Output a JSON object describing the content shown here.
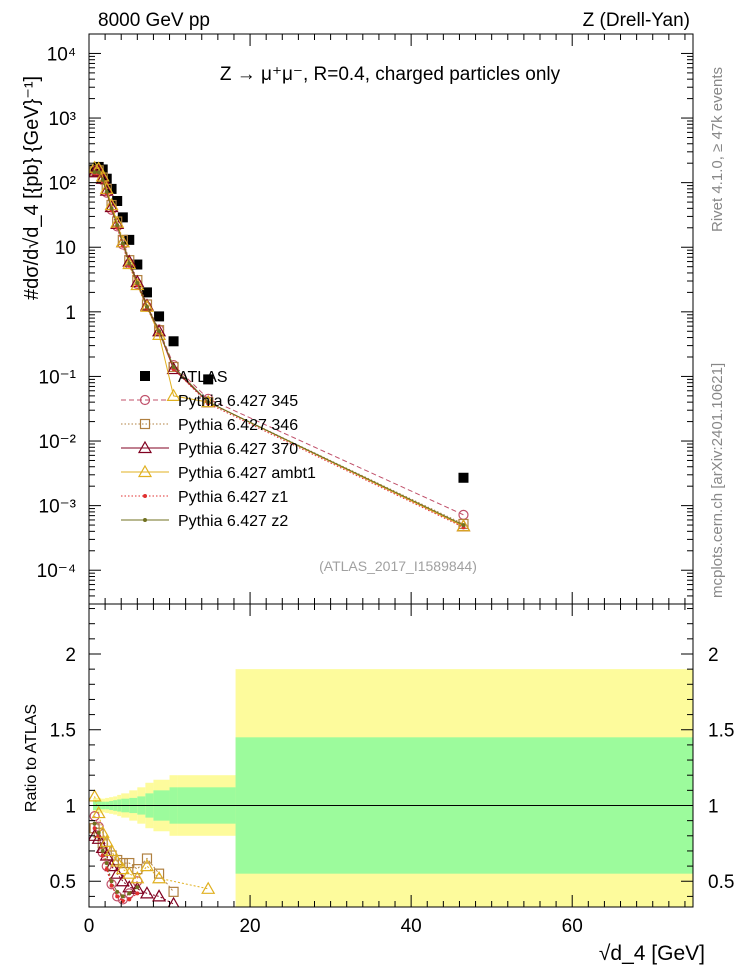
{
  "header": {
    "energy_label": "8000 GeV pp",
    "process_label": "Z (Drell-Yan)",
    "plot_title": "Z → μ⁺μ⁻, R=0.4, charged particles only",
    "analysis_id": "(ATLAS_2017_I1589844)",
    "side_label_top": "Rivet 4.1.0, ≥ 47k events",
    "side_label_bottom": "mcplots.cern.ch [arXiv:2401.10621]"
  },
  "chart_data": [
    {
      "panel": "main",
      "type": "scatter",
      "yscale": "log",
      "ylabel": "#dσ/d√d_4 [{pb} {GeV}⁻¹]",
      "xlim": [
        0,
        75
      ],
      "ylim": [
        3e-05,
        20000
      ],
      "yticks": [
        "10⁻⁴",
        "10⁻³",
        "10⁻²",
        "10⁻¹",
        "1",
        "10",
        "10²",
        "10³",
        "10⁴"
      ],
      "ytick_values": [
        0.0001,
        0.001,
        0.01,
        0.1,
        1,
        10,
        100,
        1000,
        10000
      ],
      "legend_position": "middle-left",
      "series": [
        {
          "name": "ATLAS",
          "color": "#000000",
          "marker": "square",
          "x": [
            0.7,
            1.2,
            1.7,
            2.2,
            2.8,
            3.5,
            4.2,
            5.0,
            6.0,
            7.2,
            8.7,
            10.5,
            14.8,
            46.5
          ],
          "y": [
            160,
            175,
            160,
            115,
            80,
            52,
            29,
            13,
            5.4,
            2.0,
            0.85,
            0.35,
            0.09,
            0.0027
          ]
        },
        {
          "name": "Pythia 6.427 345",
          "color": "#c0506a",
          "marker": "circle-open",
          "line": "dashed",
          "x": [
            0.7,
            1.2,
            1.7,
            2.2,
            2.8,
            3.5,
            4.2,
            5.0,
            6.0,
            7.2,
            8.7,
            10.5,
            14.8,
            46.5
          ],
          "y": [
            155,
            150,
            110,
            70,
            38,
            21,
            11,
            5.5,
            2.7,
            1.2,
            0.53,
            0.15,
            0.045,
            0.00072
          ]
        },
        {
          "name": "Pythia 6.427 346",
          "color": "#b08040",
          "marker": "square-open",
          "line": "dotted",
          "x": [
            0.7,
            1.2,
            1.7,
            2.2,
            2.8,
            3.5,
            4.2,
            5.0,
            6.0,
            7.2,
            8.7,
            10.5,
            14.8,
            46.5
          ],
          "y": [
            150,
            155,
            120,
            80,
            45,
            25,
            13,
            6.3,
            3.1,
            1.3,
            0.52,
            0.14,
            0.04,
            0.00052
          ]
        },
        {
          "name": "Pythia 6.427 370",
          "color": "#800020",
          "marker": "triangle-open",
          "line": "solid",
          "x": [
            0.7,
            1.2,
            1.7,
            2.2,
            2.8,
            3.5,
            4.2,
            5.0,
            6.0,
            7.2,
            8.7,
            10.5,
            14.8,
            46.5
          ],
          "y": [
            145,
            150,
            115,
            75,
            42,
            23,
            12,
            6.0,
            2.9,
            1.25,
            0.5,
            0.13,
            0.04,
            0.00048
          ]
        },
        {
          "name": "Pythia 6.427 ambt1",
          "color": "#e0b020",
          "marker": "triangle-open",
          "line": "solid",
          "x": [
            0.7,
            1.2,
            1.7,
            2.2,
            2.8,
            3.5,
            4.2,
            5.0,
            6.0,
            7.2,
            8.7,
            10.5,
            14.8,
            46.5
          ],
          "y": [
            170,
            165,
            125,
            80,
            45,
            24,
            12,
            5.5,
            2.6,
            1.2,
            0.44,
            0.05,
            0.04,
            0.00048
          ]
        },
        {
          "name": "Pythia 6.427 z1",
          "color": "#e03030",
          "marker": "dot",
          "line": "dotted",
          "x": [
            0.7,
            1.2,
            1.7,
            2.2,
            2.8,
            3.5,
            4.2,
            5.0,
            6.0,
            7.2,
            8.7,
            10.5,
            14.8,
            46.5
          ],
          "y": [
            140,
            140,
            105,
            68,
            37,
            20,
            10.5,
            5.2,
            2.6,
            1.15,
            0.48,
            0.13,
            0.038,
            0.00046
          ]
        },
        {
          "name": "Pythia 6.427 z2",
          "color": "#707020",
          "marker": "dot",
          "line": "solid",
          "x": [
            0.7,
            1.2,
            1.7,
            2.2,
            2.8,
            3.5,
            4.2,
            5.0,
            6.0,
            7.2,
            8.7,
            10.5,
            14.8,
            46.5
          ],
          "y": [
            145,
            145,
            110,
            72,
            40,
            22,
            11.5,
            5.6,
            2.8,
            1.2,
            0.5,
            0.14,
            0.04,
            0.0005
          ]
        }
      ]
    },
    {
      "panel": "ratio",
      "type": "line",
      "xlabel": "√d_4 [GeV]",
      "ylabel": "Ratio to ATLAS",
      "xlim": [
        0,
        75
      ],
      "ylim": [
        0.33,
        2.33
      ],
      "xticks": [
        "0",
        "20",
        "40",
        "60"
      ],
      "xtick_values": [
        0,
        20,
        40,
        60
      ],
      "yticks": [
        "0.5",
        "1",
        "1.5",
        "2"
      ],
      "ytick_values": [
        0.5,
        1,
        1.5,
        2
      ],
      "bands": {
        "edges": [
          0.5,
          1,
          1.5,
          2,
          2.5,
          3,
          3.5,
          4,
          5,
          6,
          7,
          8,
          10,
          11,
          18.2,
          75
        ],
        "stat_err": [
          0.03,
          0.03,
          0.025,
          0.025,
          0.03,
          0.035,
          0.04,
          0.045,
          0.05,
          0.06,
          0.08,
          0.1,
          0.12,
          0.12,
          0.45
        ],
        "total_err": [
          0.05,
          0.05,
          0.045,
          0.05,
          0.055,
          0.06,
          0.07,
          0.08,
          0.1,
          0.12,
          0.15,
          0.17,
          0.2,
          0.2,
          0.9
        ],
        "stat_color": "#9cfb9c",
        "total_color": "#fdfb9c"
      },
      "series": [
        {
          "name": "Pythia 6.427 345",
          "color": "#c0506a",
          "marker": "circle-open",
          "x": [
            0.7,
            1.2,
            1.7,
            2.2,
            2.8,
            3.5,
            4.2,
            5.0,
            6.0
          ],
          "y": [
            0.93,
            0.86,
            0.69,
            0.6,
            0.48,
            0.4,
            0.38,
            0.42,
            0.5
          ]
        },
        {
          "name": "Pythia 6.427 346",
          "color": "#b08040",
          "marker": "square-open",
          "x": [
            0.7,
            1.2,
            1.7,
            2.2,
            2.8,
            3.5,
            4.2,
            5.0,
            6.0,
            7.2,
            8.7,
            10.5
          ],
          "y": [
            0.85,
            0.82,
            0.75,
            0.7,
            0.67,
            0.64,
            0.62,
            0.62,
            0.58,
            0.65,
            0.55,
            0.43
          ]
        },
        {
          "name": "Pythia 6.427 370",
          "color": "#800020",
          "marker": "triangle-open",
          "x": [
            0.7,
            1.2,
            1.7,
            2.2,
            2.8,
            3.5,
            4.2,
            5.0,
            6.0,
            7.2,
            8.7,
            10.5
          ],
          "y": [
            0.8,
            0.78,
            0.72,
            0.67,
            0.6,
            0.55,
            0.5,
            0.46,
            0.45,
            0.42,
            0.4,
            0.35
          ]
        },
        {
          "name": "Pythia 6.427 ambt1",
          "color": "#e0b020",
          "marker": "triangle-open",
          "x": [
            0.7,
            1.2,
            1.7,
            2.2,
            2.8,
            3.5,
            4.2,
            5.0,
            6.0,
            7.2,
            8.7,
            14.8
          ],
          "y": [
            1.06,
            0.95,
            0.82,
            0.76,
            0.7,
            0.63,
            0.58,
            0.55,
            0.52,
            0.6,
            0.52,
            0.45
          ]
        },
        {
          "name": "Pythia 6.427 z1",
          "color": "#e03030",
          "marker": "dot",
          "x": [
            0.7,
            1.2,
            1.7,
            2.2,
            2.8,
            3.5,
            4.2,
            5.0,
            6.0
          ],
          "y": [
            0.85,
            0.8,
            0.67,
            0.58,
            0.47,
            0.4,
            0.37,
            0.38,
            0.42
          ]
        },
        {
          "name": "Pythia 6.427 z2",
          "color": "#707020",
          "marker": "dot",
          "x": [
            0.7,
            1.2,
            1.7,
            2.2,
            2.8,
            3.5,
            4.2,
            5.0,
            6.0
          ],
          "y": [
            0.88,
            0.82,
            0.7,
            0.62,
            0.5,
            0.43,
            0.4,
            0.42,
            0.46
          ]
        }
      ]
    }
  ]
}
